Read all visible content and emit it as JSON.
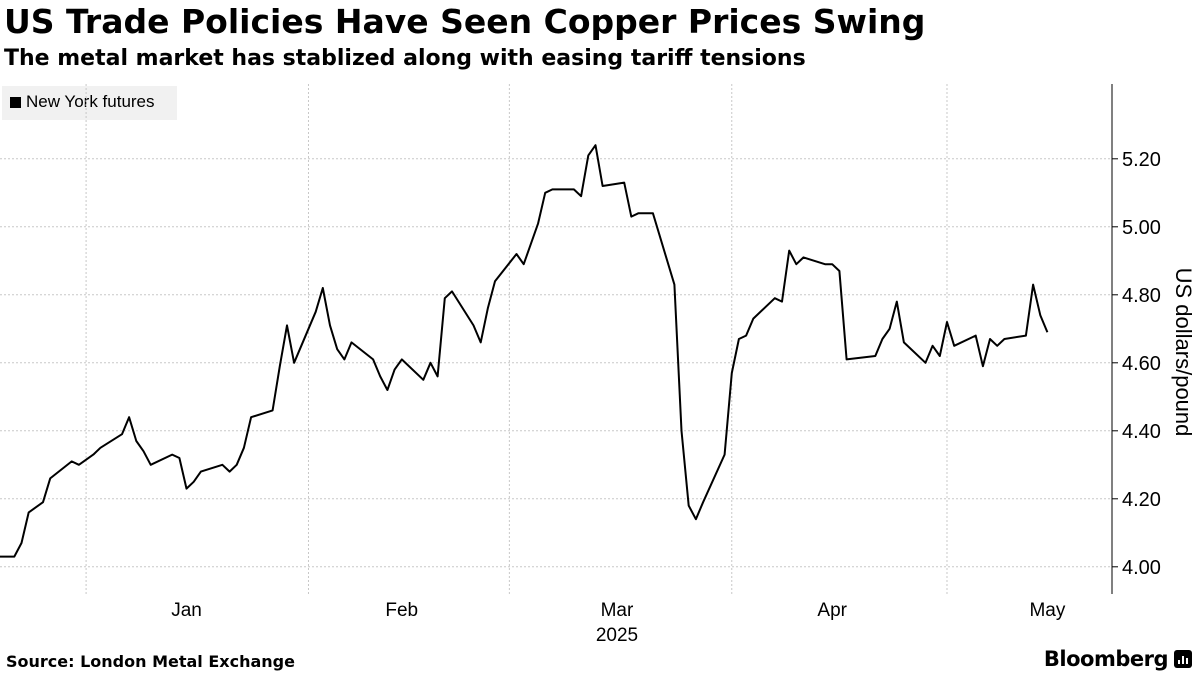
{
  "header": {
    "title": "US Trade Policies Have Seen Copper Prices Swing",
    "subtitle": "The metal market has stablized along with easing tariff tensions"
  },
  "footer": {
    "source": "Source: London Metal Exchange",
    "brand": "Bloomberg"
  },
  "colors": {
    "line": "#000000",
    "grid": "#c8c8c8",
    "legend_bg": "#f1f1f1"
  },
  "chart_data": {
    "type": "line",
    "title": "US Trade Policies Have Seen Copper Prices Swing",
    "subtitle": "The metal market has stablized along with easing tariff tensions",
    "ylabel": "US dollars/pound",
    "xlabel": "2025",
    "ylim": [
      3.92,
      5.42
    ],
    "yticks": [
      4.0,
      4.2,
      4.4,
      4.6,
      4.8,
      5.0,
      5.2
    ],
    "ytick_labels": [
      "4.00",
      "4.20",
      "4.40",
      "4.60",
      "4.80",
      "5.00",
      "5.20"
    ],
    "xlim": [
      "2024-12-20",
      "2025-05-24"
    ],
    "month_labels": [
      {
        "label": "Jan",
        "date": "2025-01-15"
      },
      {
        "label": "Feb",
        "date": "2025-02-14"
      },
      {
        "label": "Mar",
        "date": "2025-03-16"
      },
      {
        "label": "Apr",
        "date": "2025-04-15"
      },
      {
        "label": "May",
        "date": "2025-05-15"
      }
    ],
    "month_gridlines": [
      "2025-01-01",
      "2025-02-01",
      "2025-03-01",
      "2025-04-01",
      "2025-05-01"
    ],
    "year_label": "2025",
    "legend": [
      "New York futures"
    ],
    "legend_position": "top-left",
    "grid": true,
    "series": [
      {
        "name": "New York futures",
        "points": [
          [
            "2024-12-20",
            4.03
          ],
          [
            "2024-12-22",
            4.03
          ],
          [
            "2024-12-23",
            4.07
          ],
          [
            "2024-12-24",
            4.16
          ],
          [
            "2024-12-26",
            4.19
          ],
          [
            "2024-12-27",
            4.26
          ],
          [
            "2024-12-30",
            4.31
          ],
          [
            "2024-12-31",
            4.3
          ],
          [
            "2025-01-02",
            4.33
          ],
          [
            "2025-01-03",
            4.35
          ],
          [
            "2025-01-06",
            4.39
          ],
          [
            "2025-01-07",
            4.44
          ],
          [
            "2025-01-08",
            4.37
          ],
          [
            "2025-01-09",
            4.34
          ],
          [
            "2025-01-10",
            4.3
          ],
          [
            "2025-01-13",
            4.33
          ],
          [
            "2025-01-14",
            4.32
          ],
          [
            "2025-01-15",
            4.23
          ],
          [
            "2025-01-16",
            4.25
          ],
          [
            "2025-01-17",
            4.28
          ],
          [
            "2025-01-20",
            4.3
          ],
          [
            "2025-01-21",
            4.28
          ],
          [
            "2025-01-22",
            4.3
          ],
          [
            "2025-01-23",
            4.35
          ],
          [
            "2025-01-24",
            4.44
          ],
          [
            "2025-01-27",
            4.46
          ],
          [
            "2025-01-28",
            4.59
          ],
          [
            "2025-01-29",
            4.71
          ],
          [
            "2025-01-30",
            4.6
          ],
          [
            "2025-02-02",
            4.75
          ],
          [
            "2025-02-03",
            4.82
          ],
          [
            "2025-02-04",
            4.71
          ],
          [
            "2025-02-05",
            4.64
          ],
          [
            "2025-02-06",
            4.61
          ],
          [
            "2025-02-07",
            4.66
          ],
          [
            "2025-02-10",
            4.61
          ],
          [
            "2025-02-11",
            4.56
          ],
          [
            "2025-02-12",
            4.52
          ],
          [
            "2025-02-13",
            4.58
          ],
          [
            "2025-02-14",
            4.61
          ],
          [
            "2025-02-17",
            4.55
          ],
          [
            "2025-02-18",
            4.6
          ],
          [
            "2025-02-19",
            4.56
          ],
          [
            "2025-02-20",
            4.79
          ],
          [
            "2025-02-21",
            4.81
          ],
          [
            "2025-02-24",
            4.71
          ],
          [
            "2025-02-25",
            4.66
          ],
          [
            "2025-02-26",
            4.76
          ],
          [
            "2025-02-27",
            4.84
          ],
          [
            "2025-03-02",
            4.92
          ],
          [
            "2025-03-03",
            4.89
          ],
          [
            "2025-03-04",
            4.95
          ],
          [
            "2025-03-05",
            5.01
          ],
          [
            "2025-03-06",
            5.1
          ],
          [
            "2025-03-07",
            5.11
          ],
          [
            "2025-03-10",
            5.11
          ],
          [
            "2025-03-11",
            5.09
          ],
          [
            "2025-03-12",
            5.21
          ],
          [
            "2025-03-13",
            5.24
          ],
          [
            "2025-03-14",
            5.12
          ],
          [
            "2025-03-17",
            5.13
          ],
          [
            "2025-03-18",
            5.03
          ],
          [
            "2025-03-19",
            5.04
          ],
          [
            "2025-03-21",
            5.04
          ],
          [
            "2025-03-24",
            4.83
          ],
          [
            "2025-03-25",
            4.4
          ],
          [
            "2025-03-26",
            4.18
          ],
          [
            "2025-03-27",
            4.14
          ],
          [
            "2025-03-28",
            4.19
          ],
          [
            "2025-03-31",
            4.33
          ],
          [
            "2025-04-01",
            4.57
          ],
          [
            "2025-04-02",
            4.67
          ],
          [
            "2025-04-03",
            4.68
          ],
          [
            "2025-04-04",
            4.73
          ],
          [
            "2025-04-07",
            4.79
          ],
          [
            "2025-04-08",
            4.78
          ],
          [
            "2025-04-09",
            4.93
          ],
          [
            "2025-04-10",
            4.89
          ],
          [
            "2025-04-11",
            4.91
          ],
          [
            "2025-04-14",
            4.89
          ],
          [
            "2025-04-15",
            4.89
          ],
          [
            "2025-04-16",
            4.87
          ],
          [
            "2025-04-17",
            4.61
          ],
          [
            "2025-04-21",
            4.62
          ],
          [
            "2025-04-22",
            4.67
          ],
          [
            "2025-04-23",
            4.7
          ],
          [
            "2025-04-24",
            4.78
          ],
          [
            "2025-04-25",
            4.66
          ],
          [
            "2025-04-28",
            4.6
          ],
          [
            "2025-04-29",
            4.65
          ],
          [
            "2025-04-30",
            4.62
          ],
          [
            "2025-05-01",
            4.72
          ],
          [
            "2025-05-02",
            4.65
          ],
          [
            "2025-05-05",
            4.68
          ],
          [
            "2025-05-06",
            4.59
          ],
          [
            "2025-05-07",
            4.67
          ],
          [
            "2025-05-08",
            4.65
          ],
          [
            "2025-05-09",
            4.67
          ],
          [
            "2025-05-12",
            4.68
          ],
          [
            "2025-05-13",
            4.83
          ],
          [
            "2025-05-14",
            4.74
          ],
          [
            "2025-05-15",
            4.69
          ]
        ]
      }
    ]
  }
}
